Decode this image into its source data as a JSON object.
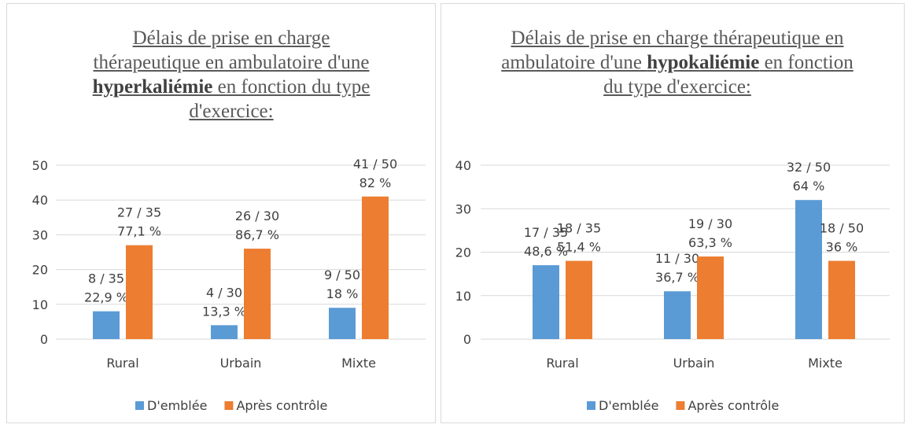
{
  "chart_data": [
    {
      "type": "bar",
      "title": [
        {
          "text": "Délais de prise en charge thérapeutique en ambulatoire d'une "
        },
        {
          "text": "hyperkaliémie",
          "bold": true
        },
        {
          "text": " en fonction du type d'exercice:"
        }
      ],
      "categories": [
        "Rural",
        "Urbain",
        "Mixte"
      ],
      "series": [
        {
          "name": "D'emblée",
          "color": "#5b9bd5",
          "values": [
            8,
            4,
            9
          ],
          "value_labels": [
            [
              "8 / 35",
              "22,9 %"
            ],
            [
              "4 / 30",
              "13,3 %"
            ],
            [
              "9 / 50",
              "18 %"
            ]
          ]
        },
        {
          "name": "Après contrôle",
          "color": "#ed7d31",
          "values": [
            27,
            26,
            41
          ],
          "value_labels": [
            [
              "27 / 35",
              "77,1 %"
            ],
            [
              "26 / 30",
              "86,7 %"
            ],
            [
              "41 / 50",
              "82 %"
            ]
          ]
        }
      ],
      "ylim": [
        0,
        50
      ],
      "yticks": [
        0,
        10,
        20,
        30,
        40,
        50
      ],
      "grid": true,
      "legend": "bottom"
    },
    {
      "type": "bar",
      "title": [
        {
          "text": "Délais de prise en charge thérapeutique en ambulatoire d'une "
        },
        {
          "text": "hypokaliémie",
          "bold": true
        },
        {
          "text": " en fonction du type d'exercice:"
        }
      ],
      "categories": [
        "Rural",
        "Urbain",
        "Mixte"
      ],
      "series": [
        {
          "name": "D'emblée",
          "color": "#5b9bd5",
          "values": [
            17,
            11,
            32
          ],
          "value_labels": [
            [
              "17 /  35",
              "48,6 %"
            ],
            [
              "11 / 30",
              "36,7 %"
            ],
            [
              "32 / 50",
              "64 %"
            ]
          ]
        },
        {
          "name": "Après contrôle",
          "color": "#ed7d31",
          "values": [
            18,
            19,
            18
          ],
          "value_labels": [
            [
              "18 / 35",
              "51,4 %"
            ],
            [
              "19 / 30",
              "63,3 %"
            ],
            [
              "18 / 50",
              "36 %"
            ]
          ]
        }
      ],
      "ylim": [
        0,
        40
      ],
      "yticks": [
        0,
        10,
        20,
        30,
        40
      ],
      "grid": true,
      "legend": "bottom"
    }
  ]
}
